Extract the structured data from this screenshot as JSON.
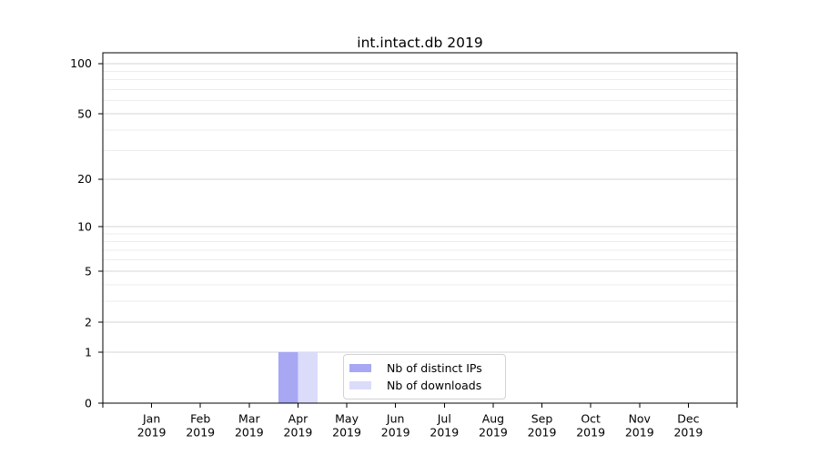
{
  "chart_data": {
    "type": "bar",
    "title": "int.intact.db 2019",
    "categories": [
      "Jan",
      "Feb",
      "Mar",
      "Apr",
      "May",
      "Jun",
      "Jul",
      "Aug",
      "Sep",
      "Oct",
      "Nov",
      "Dec"
    ],
    "x_tick_year": "2019",
    "series": [
      {
        "name": "Nb of distinct IPs",
        "color": "#a7a7f4",
        "values": [
          0,
          0,
          0,
          1,
          0,
          0,
          0,
          0,
          0,
          0,
          0,
          0
        ]
      },
      {
        "name": "Nb of downloads",
        "color": "#dbdbfa",
        "values": [
          0,
          0,
          0,
          1,
          0,
          0,
          0,
          0,
          0,
          0,
          0,
          0
        ]
      }
    ],
    "yscale": "log1p",
    "ylim": [
      0,
      116
    ],
    "yticks": [
      0,
      1,
      2,
      5,
      10,
      20,
      50,
      100
    ],
    "yticks_minor": [
      3,
      4,
      6,
      7,
      8,
      9,
      30,
      40,
      60,
      70,
      80,
      90
    ],
    "grid": true,
    "legend_position": "lower center"
  },
  "style": {
    "background": "#ffffff",
    "grid_major_color": "#d5d5d5",
    "grid_minor_color": "#ededed",
    "spine_color": "#000000",
    "text_color": "#000000",
    "legend_border_color": "#d2d2d2"
  }
}
